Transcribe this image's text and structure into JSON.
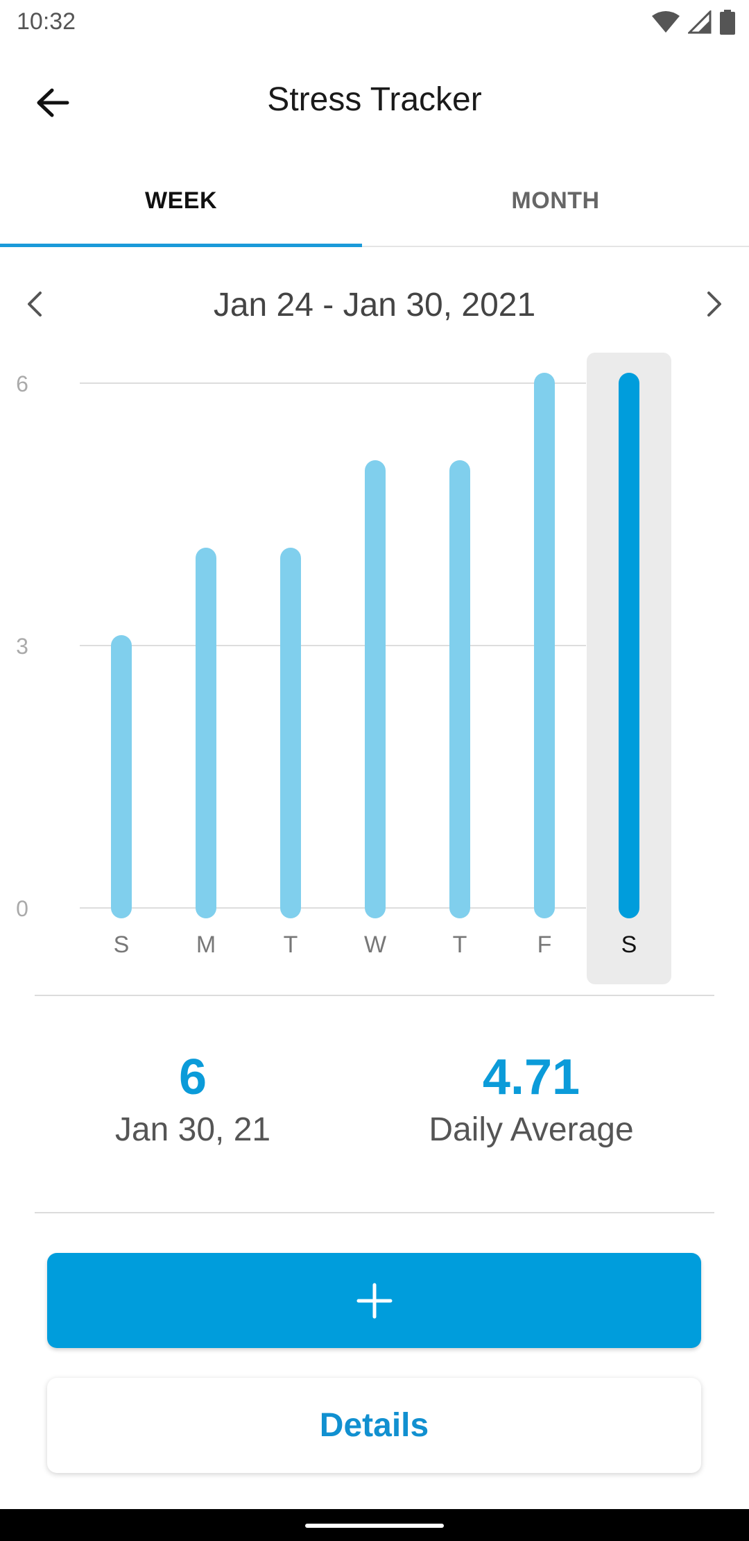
{
  "status_bar": {
    "time": "10:32"
  },
  "app_bar": {
    "title": "Stress Tracker"
  },
  "tabs": [
    {
      "label": "WEEK",
      "selected": true
    },
    {
      "label": "MONTH",
      "selected": false
    }
  ],
  "date_nav": {
    "range": "Jan 24 - Jan 30, 2021"
  },
  "colors": {
    "accent": "#009ddc",
    "bar_light": "#80cfed",
    "bar_selected": "#009ddc",
    "highlight_bg": "#ebebeb"
  },
  "chart_data": {
    "type": "bar",
    "categories": [
      "S",
      "M",
      "T",
      "W",
      "T",
      "F",
      "S"
    ],
    "values": [
      3,
      4,
      4,
      5,
      5,
      6,
      6
    ],
    "selected_index": 6,
    "ylim": [
      0,
      6
    ],
    "yticks": [
      "0",
      "3",
      "6"
    ],
    "grid": true
  },
  "stats": {
    "selected_value": "6",
    "selected_date": "Jan 30, 21",
    "average_value": "4.71",
    "average_label": "Daily Average"
  },
  "buttons": {
    "add_icon": "plus-icon",
    "details_label": "Details"
  }
}
